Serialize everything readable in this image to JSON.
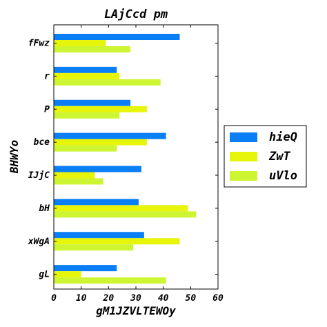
{
  "chart_data": {
    "type": "bar",
    "orientation": "horizontal",
    "title": "LAjCcd pm",
    "xlabel": "gM1JZVLTEWOy",
    "ylabel": "BHWYo",
    "categories": [
      "fFwz",
      "r",
      "P",
      "bce",
      "IJjC",
      "bH",
      "xWgA",
      "gL"
    ],
    "xlim": [
      0,
      60
    ],
    "xticks": [
      "0",
      "10",
      "20",
      "30",
      "40",
      "50",
      "60"
    ],
    "grid": false,
    "legend_position": "right",
    "series": [
      {
        "name": "hieQ",
        "color": "#0a7ff5",
        "values": [
          46,
          23,
          28,
          41,
          32,
          31,
          33,
          23
        ]
      },
      {
        "name": "ZwT",
        "color": "#e6f50a",
        "values": [
          19,
          24,
          34,
          34,
          15,
          49,
          46,
          10
        ]
      },
      {
        "name": "uVlo",
        "color": "#cdf531",
        "values": [
          28,
          39,
          24,
          23,
          18,
          52,
          29,
          41
        ]
      }
    ]
  }
}
